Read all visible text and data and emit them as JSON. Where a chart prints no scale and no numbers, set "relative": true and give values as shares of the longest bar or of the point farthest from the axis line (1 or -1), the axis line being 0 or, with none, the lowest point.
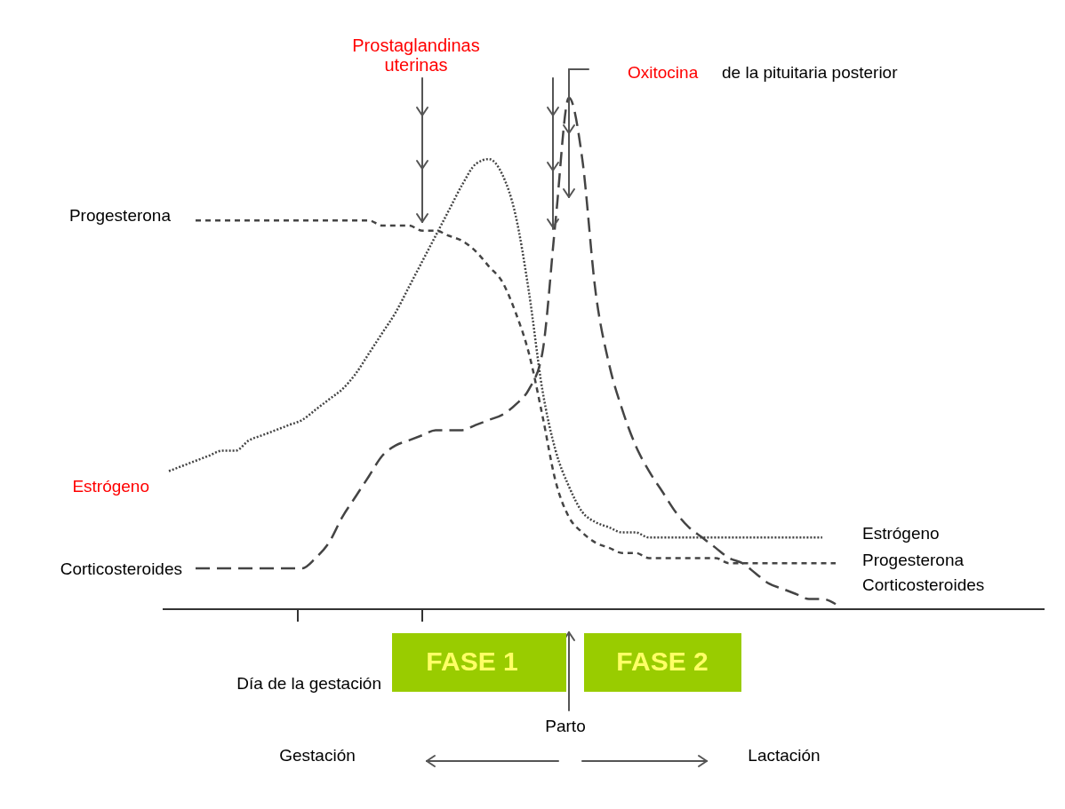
{
  "chart_data": {
    "type": "line",
    "relative": true,
    "categories": [
      null,
      null,
      null,
      null,
      null,
      null,
      null,
      null,
      null,
      null,
      null,
      null,
      null,
      null,
      null,
      null,
      null,
      null,
      null,
      null,
      null,
      null,
      null,
      null,
      null,
      null,
      null,
      null,
      null,
      null,
      null,
      null,
      null,
      null,
      null,
      null,
      null,
      null,
      null,
      null,
      null,
      null,
      null,
      null,
      null,
      null,
      null,
      null,
      null,
      null,
      null,
      null
    ],
    "series": [
      {
        "name": "Progesterona",
        "color": "#444444",
        "line_style": "dashed",
        "values": [
          null,
          null,
          0.76,
          0.76,
          0.76,
          0.76,
          0.76,
          0.76,
          0.76,
          0.76,
          0.76,
          0.76,
          0.76,
          0.76,
          0.76,
          0.76,
          0.75,
          0.75,
          0.75,
          0.74,
          0.74,
          0.73,
          0.72,
          0.7,
          0.67,
          0.64,
          0.58,
          0.5,
          0.38,
          0.25,
          0.18,
          0.15,
          0.13,
          0.12,
          0.11,
          0.11,
          0.1,
          0.1,
          0.1,
          0.1,
          0.1,
          0.1,
          0.09,
          0.09,
          0.09,
          0.09,
          0.09,
          0.09,
          0.09,
          0.09,
          0.09,
          null
        ]
      },
      {
        "name": "Estrógeno",
        "color": "#444444",
        "line_style": "dotted",
        "values": [
          0.27,
          0.28,
          0.29,
          0.3,
          0.31,
          0.31,
          0.33,
          0.34,
          0.35,
          0.36,
          0.37,
          0.39,
          0.41,
          0.43,
          0.46,
          0.5,
          0.54,
          0.58,
          0.63,
          0.68,
          0.73,
          0.78,
          0.83,
          0.87,
          0.88,
          0.85,
          0.77,
          0.62,
          0.43,
          0.31,
          0.24,
          0.19,
          0.17,
          0.16,
          0.15,
          0.15,
          0.14,
          0.14,
          0.14,
          0.14,
          0.14,
          0.14,
          0.14,
          0.14,
          0.14,
          0.14,
          0.14,
          0.14,
          0.14,
          0.14,
          null,
          null
        ]
      },
      {
        "name": "Corticosteroides",
        "color": "#444444",
        "line_style": "dashed",
        "values": [
          null,
          null,
          0.08,
          0.08,
          0.08,
          0.08,
          0.08,
          0.08,
          0.08,
          0.08,
          0.08,
          0.1,
          0.13,
          0.18,
          0.22,
          0.26,
          0.3,
          0.32,
          0.33,
          0.34,
          0.35,
          0.35,
          0.35,
          0.36,
          0.37,
          0.38,
          0.4,
          0.43,
          0.5,
          0.76,
          1,
          0.88,
          0.62,
          0.48,
          0.39,
          0.32,
          0.27,
          0.23,
          0.19,
          0.16,
          0.14,
          0.12,
          0.1,
          0.09,
          0.07,
          0.05,
          0.04,
          0.03,
          0.02,
          0.02,
          0.01,
          null
        ]
      }
    ],
    "annotations": [
      "Prostaglandinas\nuterinas",
      "Oxitocina de la pituitaria posterior",
      "Estrógeno",
      "Progesterona",
      "Corticosteroides",
      "FASE 1",
      "FASE 2",
      "Día de la gestación",
      "Parto",
      "Gestación",
      "Lactación"
    ]
  }
}
